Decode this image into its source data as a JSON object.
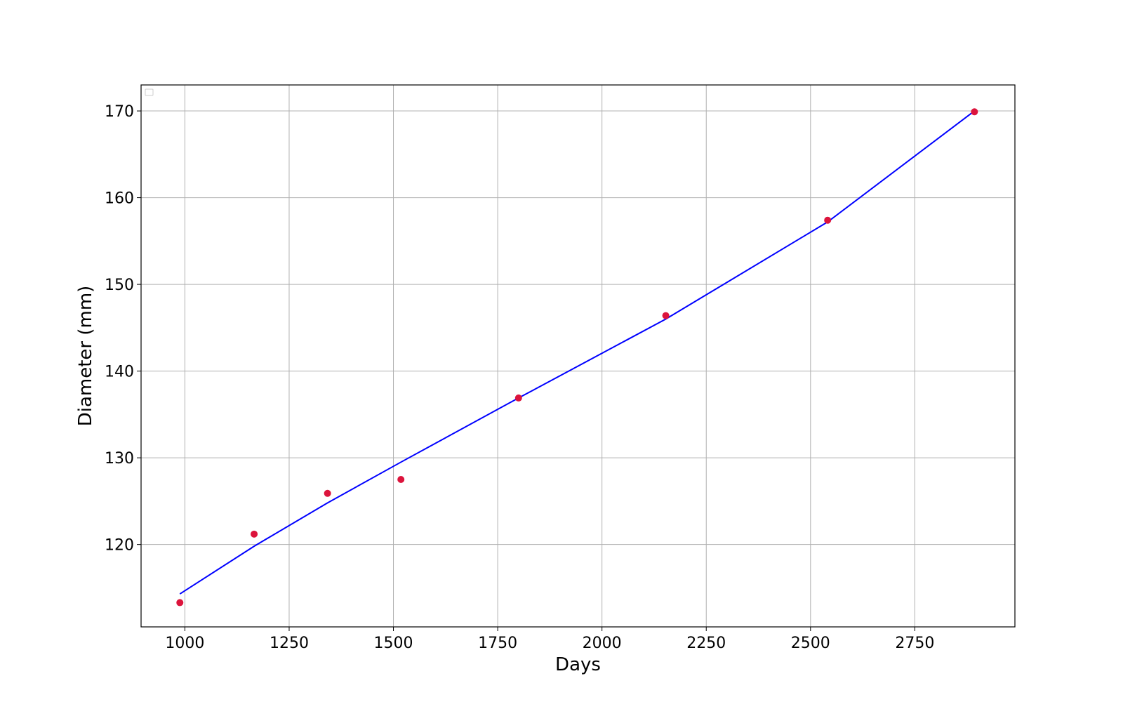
{
  "chart_data": {
    "type": "scatter",
    "title": "",
    "xlabel": "Days",
    "ylabel": "Diameter (mm)",
    "xlim": [
      895,
      2990
    ],
    "ylim": [
      110.5,
      173
    ],
    "xticks": [
      1000,
      1250,
      1500,
      1750,
      2000,
      2250,
      2500,
      2750
    ],
    "yticks": [
      120,
      130,
      140,
      150,
      160,
      170
    ],
    "grid": true,
    "legend": "empty, top-left",
    "series": [
      {
        "type": "scatter",
        "color": "#dc143c",
        "x": [
          988,
          1166,
          1342,
          1518,
          1800,
          2153,
          2541,
          2893
        ],
        "y": [
          113.3,
          121.2,
          125.9,
          127.5,
          136.9,
          146.4,
          157.4,
          169.9
        ]
      },
      {
        "type": "line",
        "color": "#0000ff",
        "x": [
          988,
          1166,
          1342,
          1518,
          1800,
          2153,
          2541,
          2893
        ],
        "y": [
          114.3,
          119.8,
          124.8,
          129.5,
          136.9,
          146.0,
          157.2,
          170.0
        ]
      }
    ]
  }
}
